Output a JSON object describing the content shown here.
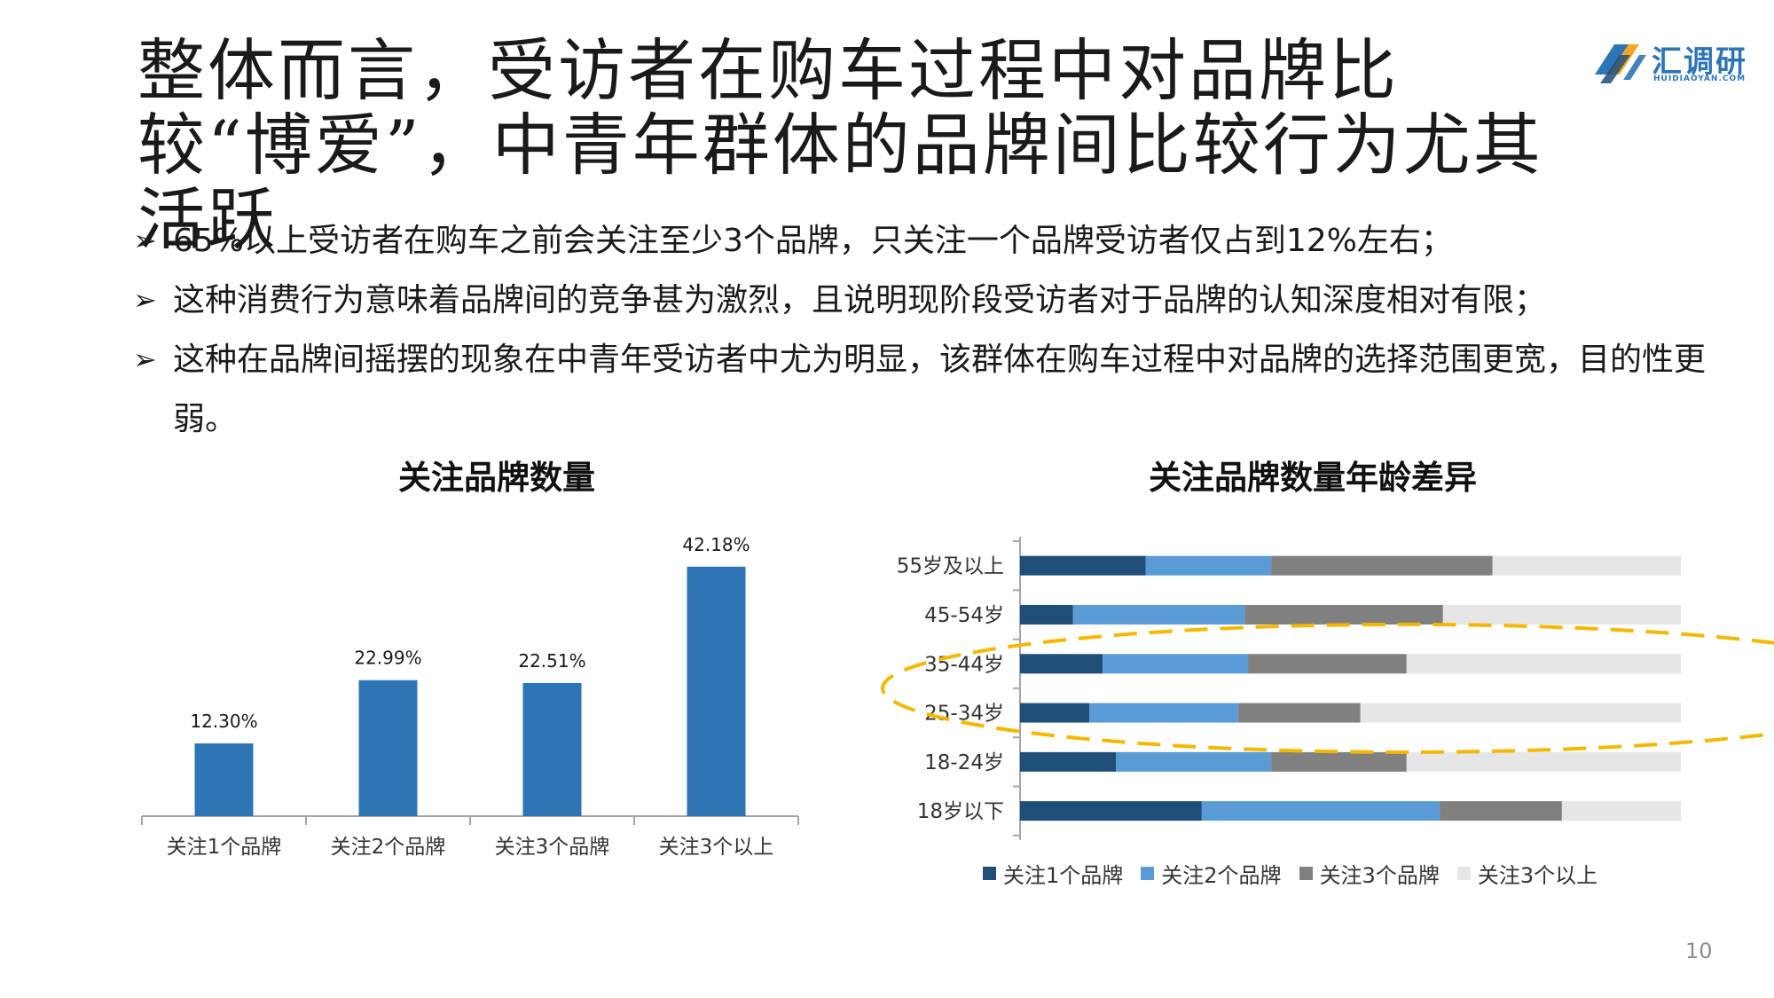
{
  "slide": {
    "title": "整体而言，受访者在购车过程中对品牌比较“博爱”，中青年群体的品牌间比较行为尤其活跃",
    "logo": {
      "text": "汇调研",
      "subtext": "HUIDIAOYAN.COM"
    },
    "bullets": [
      "65%以上受访者在购车之前会关注至少3个品牌，只关注一个品牌受访者仅占到12%左右；",
      "这种消费行为意味着品牌间的竞争甚为激烈，且说明现阶段受访者对于品牌的认知深度相对有限；",
      "这种在品牌间摇摆的现象在中青年受访者中尤为明显，该群体在购车过程中对品牌的选择范围更宽，目的性更弱。"
    ],
    "page_number": "10"
  },
  "chart_data": [
    {
      "type": "bar",
      "title": "关注品牌数量",
      "categories": [
        "关注1个品牌",
        "关注2个品牌",
        "关注3个品牌",
        "关注3个以上"
      ],
      "values": [
        12.3,
        22.99,
        22.51,
        42.18
      ],
      "data_labels": [
        "12.30%",
        "22.99%",
        "22.51%",
        "42.18%"
      ],
      "ylim": [
        0,
        45
      ],
      "color": "#2e75b6",
      "grid": false
    },
    {
      "type": "bar",
      "orientation": "horizontal",
      "stacked": "percent",
      "title": "关注品牌数量年龄差异",
      "categories": [
        "55岁及以上",
        "45-54岁",
        "35-44岁",
        "25-34岁",
        "18-24岁",
        "18岁以下"
      ],
      "series": [
        {
          "name": "关注1个品牌",
          "color": "#1f4e79",
          "values": [
            19,
            8,
            12.5,
            10.5,
            14.5,
            27.5
          ]
        },
        {
          "name": "关注2个品牌",
          "color": "#5b9bd5",
          "values": [
            19,
            26,
            22,
            22.5,
            23.5,
            36
          ]
        },
        {
          "name": "关注3个品牌",
          "color": "#808080",
          "values": [
            33.5,
            30,
            24,
            18.5,
            20.5,
            18.5
          ]
        },
        {
          "name": "关注3个以上",
          "color": "#e6e6e6",
          "values": [
            28.5,
            36,
            41.5,
            48.5,
            41.5,
            18
          ]
        }
      ],
      "xlim": [
        0,
        100
      ],
      "legend_position": "bottom",
      "annotation": {
        "shape": "dashed-ellipse",
        "color": "#f5b800",
        "highlights": [
          "35-44岁",
          "25-34岁"
        ]
      }
    }
  ]
}
